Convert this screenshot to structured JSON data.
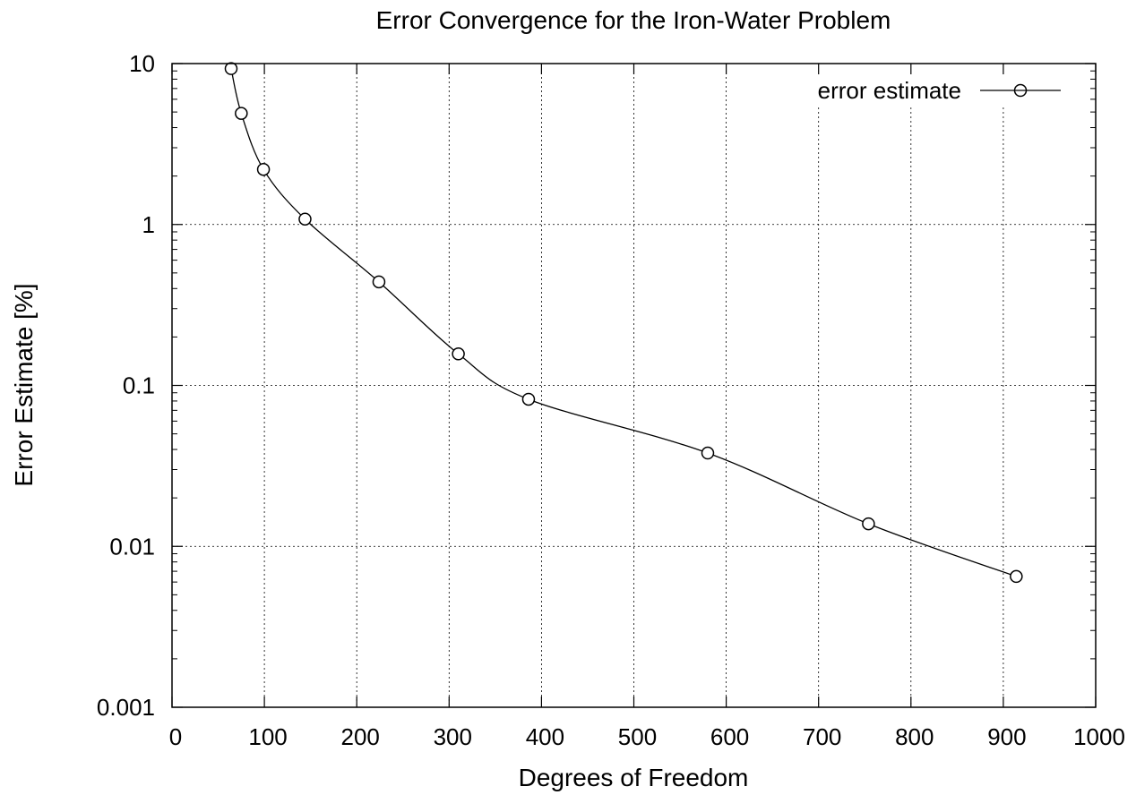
{
  "chart_data": {
    "type": "line",
    "title": "Error Convergence for the Iron-Water Problem",
    "xlabel": "Degrees of Freedom",
    "ylabel": "Error Estimate [%]",
    "xlim": [
      0,
      1000
    ],
    "ylim": [
      0.001,
      10
    ],
    "yscale": "log",
    "grid": true,
    "legend_position": "top-right",
    "x_ticks": [
      {
        "value": 0,
        "label": "0"
      },
      {
        "value": 100,
        "label": "100"
      },
      {
        "value": 200,
        "label": "200"
      },
      {
        "value": 300,
        "label": "300"
      },
      {
        "value": 400,
        "label": "400"
      },
      {
        "value": 500,
        "label": "500"
      },
      {
        "value": 600,
        "label": "600"
      },
      {
        "value": 700,
        "label": "700"
      },
      {
        "value": 800,
        "label": "800"
      },
      {
        "value": 900,
        "label": "900"
      },
      {
        "value": 1000,
        "label": "1000"
      }
    ],
    "y_ticks": [
      {
        "value": 0.001,
        "label": "0.001"
      },
      {
        "value": 0.01,
        "label": "0.01"
      },
      {
        "value": 0.1,
        "label": "0.1"
      },
      {
        "value": 1,
        "label": "1"
      },
      {
        "value": 10,
        "label": "10"
      }
    ],
    "series": [
      {
        "name": "error estimate",
        "color": "#000000",
        "marker": "open-circle",
        "x": [
          64,
          75,
          99,
          144,
          224,
          310,
          386,
          580,
          754,
          914
        ],
        "y": [
          9.3,
          4.9,
          2.2,
          1.08,
          0.44,
          0.157,
          0.082,
          0.038,
          0.0138,
          0.0065
        ]
      }
    ]
  }
}
